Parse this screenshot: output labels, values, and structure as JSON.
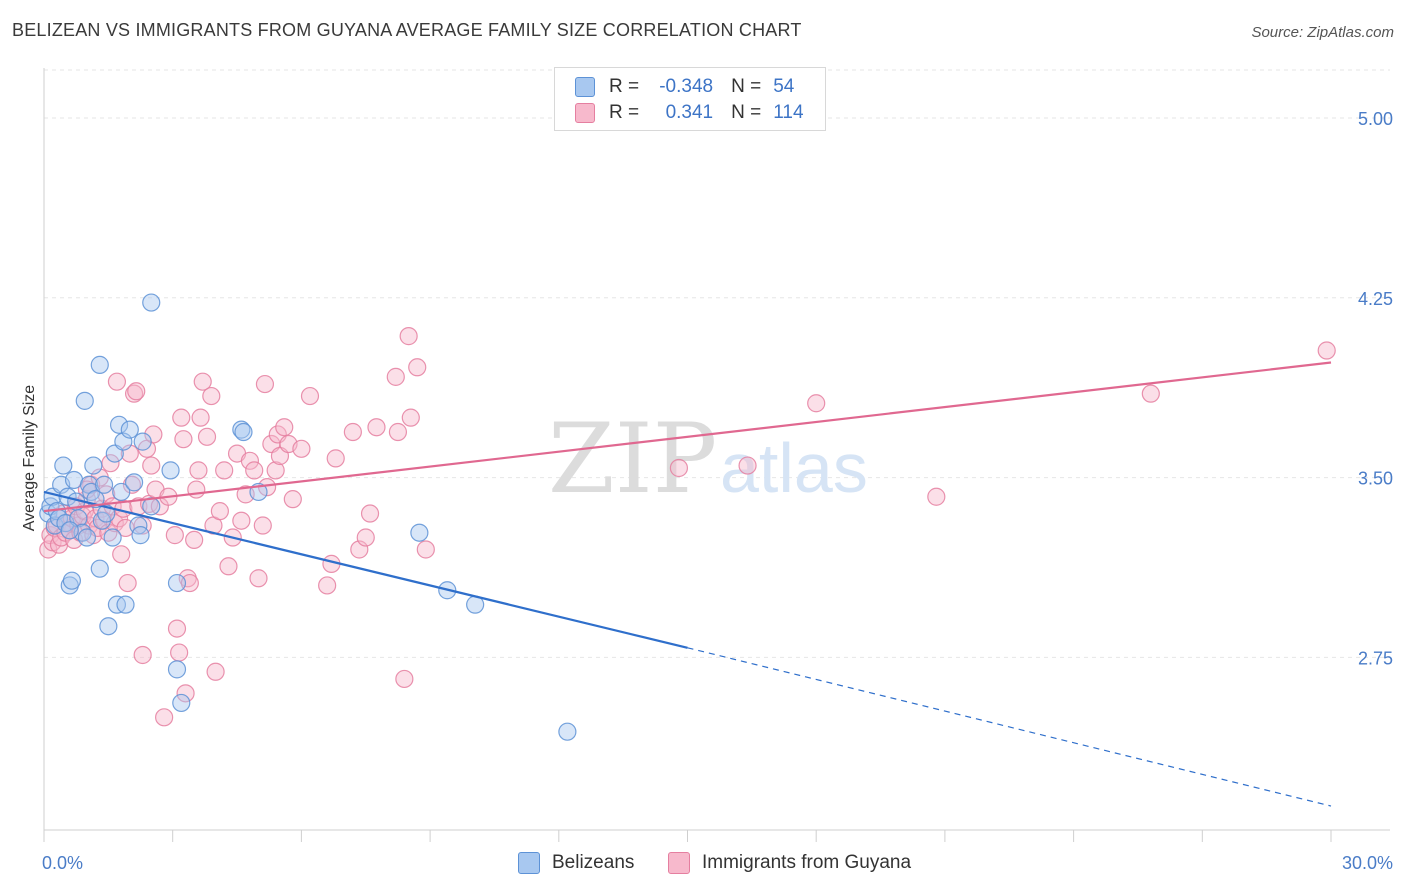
{
  "title": "BELIZEAN VS IMMIGRANTS FROM GUYANA AVERAGE FAMILY SIZE CORRELATION CHART",
  "source": "Source: ZipAtlas.com",
  "watermark": {
    "zip": "ZIP",
    "atlas": "atlas"
  },
  "legend": {
    "r_label": "R =",
    "n_label": "N =",
    "series": [
      {
        "r": "-0.348",
        "n": "54"
      },
      {
        "r": "0.341",
        "n": "114"
      }
    ]
  },
  "colors": {
    "blue_fill": "#a8c8f0",
    "blue_stroke": "#5d92d6",
    "blue_line": "#2f6fcb",
    "pink_fill": "#f7b9cc",
    "pink_stroke": "#e57fa0",
    "pink_line": "#e06890",
    "tick_text": "#4a7cc7"
  },
  "chart_data": {
    "type": "scatter",
    "title": "BELIZEAN VS IMMIGRANTS FROM GUYANA AVERAGE FAMILY SIZE CORRELATION CHART",
    "xlabel": "",
    "ylabel": "Average Family Size",
    "xlim": [
      0,
      30
    ],
    "ylim": [
      2.03,
      5.2
    ],
    "x_tick_labels": [
      "0.0%",
      "30.0%"
    ],
    "y_ticks": [
      2.75,
      3.5,
      4.25,
      5.0
    ],
    "y_tick_labels": [
      "2.75",
      "3.50",
      "4.25",
      "5.00"
    ],
    "legend_position": "top-center",
    "series": [
      {
        "name": "Belizeans",
        "color": "blue",
        "trend": {
          "x0": 0,
          "y0": 3.44,
          "x1": 15,
          "y1": 2.79,
          "dash_to_x": 30,
          "dash_to_y": 2.13
        },
        "points": [
          [
            0.1,
            3.35
          ],
          [
            0.15,
            3.38
          ],
          [
            0.2,
            3.42
          ],
          [
            0.25,
            3.3
          ],
          [
            0.3,
            3.36
          ],
          [
            0.35,
            3.33
          ],
          [
            0.4,
            3.47
          ],
          [
            0.45,
            3.55
          ],
          [
            0.5,
            3.31
          ],
          [
            0.55,
            3.42
          ],
          [
            0.6,
            3.05
          ],
          [
            0.65,
            3.07
          ],
          [
            0.7,
            3.49
          ],
          [
            0.75,
            3.4
          ],
          [
            0.8,
            3.33
          ],
          [
            0.9,
            3.27
          ],
          [
            0.95,
            3.82
          ],
          [
            1.0,
            3.25
          ],
          [
            1.05,
            3.47
          ],
          [
            1.1,
            3.44
          ],
          [
            1.15,
            3.55
          ],
          [
            1.2,
            3.41
          ],
          [
            1.3,
            3.12
          ],
          [
            1.3,
            3.97
          ],
          [
            1.35,
            3.32
          ],
          [
            1.4,
            3.47
          ],
          [
            1.45,
            3.35
          ],
          [
            1.5,
            2.88
          ],
          [
            1.6,
            3.25
          ],
          [
            1.65,
            3.6
          ],
          [
            1.7,
            2.97
          ],
          [
            1.75,
            3.72
          ],
          [
            1.8,
            3.44
          ],
          [
            1.85,
            3.65
          ],
          [
            1.9,
            2.97
          ],
          [
            2.0,
            3.7
          ],
          [
            2.1,
            3.48
          ],
          [
            2.2,
            3.3
          ],
          [
            2.25,
            3.26
          ],
          [
            2.3,
            3.65
          ],
          [
            2.5,
            3.38
          ],
          [
            2.5,
            4.23
          ],
          [
            2.95,
            3.53
          ],
          [
            3.1,
            3.06
          ],
          [
            3.1,
            2.7
          ],
          [
            3.2,
            2.56
          ],
          [
            4.6,
            3.7
          ],
          [
            4.65,
            3.69
          ],
          [
            5.0,
            3.44
          ],
          [
            8.75,
            3.27
          ],
          [
            9.4,
            3.03
          ],
          [
            10.05,
            2.97
          ],
          [
            12.2,
            2.44
          ],
          [
            0.6,
            3.28
          ]
        ]
      },
      {
        "name": "Immigrants from Guyana",
        "color": "pink",
        "trend": {
          "x0": 0,
          "y0": 3.36,
          "x1": 30,
          "y1": 3.98
        },
        "points": [
          [
            0.1,
            3.2
          ],
          [
            0.15,
            3.26
          ],
          [
            0.2,
            3.23
          ],
          [
            0.25,
            3.29
          ],
          [
            0.3,
            3.3
          ],
          [
            0.35,
            3.22
          ],
          [
            0.4,
            3.25
          ],
          [
            0.45,
            3.35
          ],
          [
            0.5,
            3.27
          ],
          [
            0.55,
            3.31
          ],
          [
            0.6,
            3.28
          ],
          [
            0.65,
            3.33
          ],
          [
            0.7,
            3.24
          ],
          [
            0.75,
            3.38
          ],
          [
            0.8,
            3.3
          ],
          [
            0.85,
            3.27
          ],
          [
            0.9,
            3.34
          ],
          [
            0.95,
            3.36
          ],
          [
            1.0,
            3.41
          ],
          [
            1.05,
            3.3
          ],
          [
            1.1,
            3.47
          ],
          [
            1.15,
            3.26
          ],
          [
            1.2,
            3.33
          ],
          [
            1.25,
            3.29
          ],
          [
            1.3,
            3.5
          ],
          [
            1.35,
            3.37
          ],
          [
            1.4,
            3.32
          ],
          [
            1.45,
            3.43
          ],
          [
            1.5,
            3.27
          ],
          [
            1.55,
            3.56
          ],
          [
            1.6,
            3.38
          ],
          [
            1.65,
            3.31
          ],
          [
            1.7,
            3.9
          ],
          [
            1.75,
            3.33
          ],
          [
            1.8,
            3.18
          ],
          [
            1.85,
            3.37
          ],
          [
            1.9,
            3.29
          ],
          [
            1.95,
            3.06
          ],
          [
            2.0,
            3.6
          ],
          [
            2.05,
            3.47
          ],
          [
            2.1,
            3.85
          ],
          [
            2.15,
            3.86
          ],
          [
            2.2,
            3.38
          ],
          [
            2.3,
            3.3
          ],
          [
            2.3,
            2.76
          ],
          [
            2.4,
            3.62
          ],
          [
            2.45,
            3.39
          ],
          [
            2.5,
            3.55
          ],
          [
            2.55,
            3.68
          ],
          [
            2.6,
            3.45
          ],
          [
            2.7,
            3.38
          ],
          [
            2.8,
            2.5
          ],
          [
            2.9,
            3.42
          ],
          [
            3.05,
            3.26
          ],
          [
            3.1,
            2.87
          ],
          [
            3.15,
            2.77
          ],
          [
            3.2,
            3.75
          ],
          [
            3.25,
            3.66
          ],
          [
            3.3,
            2.6
          ],
          [
            3.35,
            3.08
          ],
          [
            3.4,
            3.06
          ],
          [
            3.5,
            3.24
          ],
          [
            3.55,
            3.45
          ],
          [
            3.6,
            3.53
          ],
          [
            3.65,
            3.75
          ],
          [
            3.7,
            3.9
          ],
          [
            3.8,
            3.67
          ],
          [
            3.9,
            3.84
          ],
          [
            3.95,
            3.3
          ],
          [
            4.0,
            2.69
          ],
          [
            4.1,
            3.36
          ],
          [
            4.2,
            3.53
          ],
          [
            4.3,
            3.13
          ],
          [
            4.4,
            3.25
          ],
          [
            4.5,
            3.6
          ],
          [
            4.6,
            3.32
          ],
          [
            4.7,
            3.43
          ],
          [
            4.8,
            3.57
          ],
          [
            4.9,
            3.53
          ],
          [
            5.0,
            3.08
          ],
          [
            5.1,
            3.3
          ],
          [
            5.15,
            3.89
          ],
          [
            5.2,
            3.46
          ],
          [
            5.3,
            3.64
          ],
          [
            5.4,
            3.53
          ],
          [
            5.45,
            3.68
          ],
          [
            5.5,
            3.59
          ],
          [
            5.6,
            3.71
          ],
          [
            5.7,
            3.64
          ],
          [
            5.8,
            3.41
          ],
          [
            6.0,
            3.62
          ],
          [
            6.2,
            3.84
          ],
          [
            6.6,
            3.05
          ],
          [
            6.7,
            3.14
          ],
          [
            6.8,
            3.58
          ],
          [
            7.2,
            3.69
          ],
          [
            7.35,
            3.2
          ],
          [
            7.5,
            3.25
          ],
          [
            7.6,
            3.35
          ],
          [
            7.75,
            3.71
          ],
          [
            8.2,
            3.92
          ],
          [
            8.25,
            3.69
          ],
          [
            8.4,
            2.66
          ],
          [
            8.5,
            4.09
          ],
          [
            8.55,
            3.75
          ],
          [
            8.7,
            3.96
          ],
          [
            8.9,
            3.2
          ],
          [
            14.8,
            3.54
          ],
          [
            16.4,
            3.55
          ],
          [
            18.0,
            3.81
          ],
          [
            20.8,
            3.42
          ],
          [
            25.8,
            3.85
          ],
          [
            29.9,
            4.03
          ],
          [
            1.0,
            3.45
          ]
        ]
      }
    ]
  },
  "bottom_legend": [
    "Belizeans",
    "Immigrants from Guyana"
  ]
}
